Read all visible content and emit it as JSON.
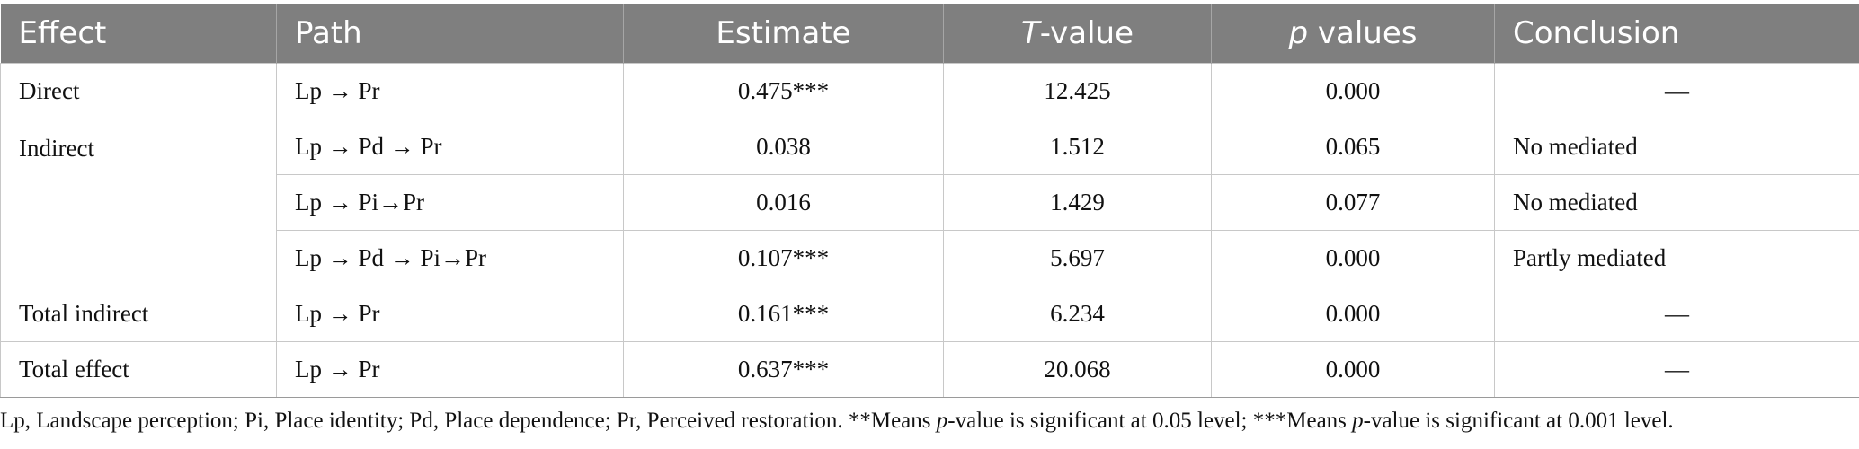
{
  "table": {
    "headers": {
      "effect": "Effect",
      "path": "Path",
      "estimate": "Estimate",
      "t_italic": "T",
      "t_rest": "-value",
      "p_italic": "p",
      "p_rest": " values",
      "conclusion": "Conclusion"
    },
    "rows": [
      {
        "effect": "Direct",
        "path": "Lp → Pr",
        "estimate": "0.475***",
        "t": "12.425",
        "p": "0.000",
        "conclusion": "—"
      },
      {
        "effect": "Indirect",
        "path": "Lp → Pd → Pr",
        "estimate": "0.038",
        "t": "1.512",
        "p": "0.065",
        "conclusion": "No mediated"
      },
      {
        "effect": "",
        "path": "Lp → Pi→Pr",
        "estimate": "0.016",
        "t": "1.429",
        "p": "0.077",
        "conclusion": "No mediated"
      },
      {
        "effect": "",
        "path": "Lp → Pd → Pi→Pr",
        "estimate": "0.107***",
        "t": "5.697",
        "p": "0.000",
        "conclusion": "Partly mediated"
      },
      {
        "effect": "Total indirect",
        "path": "Lp → Pr",
        "estimate": "0.161***",
        "t": "6.234",
        "p": "0.000",
        "conclusion": "—"
      },
      {
        "effect": "Total effect",
        "path": "Lp → Pr",
        "estimate": "0.637***",
        "t": "20.068",
        "p": "0.000",
        "conclusion": "—"
      }
    ]
  },
  "footnote": {
    "part1": "Lp, Landscape perception; Pi, Place identity; Pd, Place dependence; Pr, Perceived restoration. **Means ",
    "italic1": "p",
    "part2": "-value is significant at 0.05 level; ***Means ",
    "italic2": "p",
    "part3": "-value is significant at 0.001 level."
  }
}
